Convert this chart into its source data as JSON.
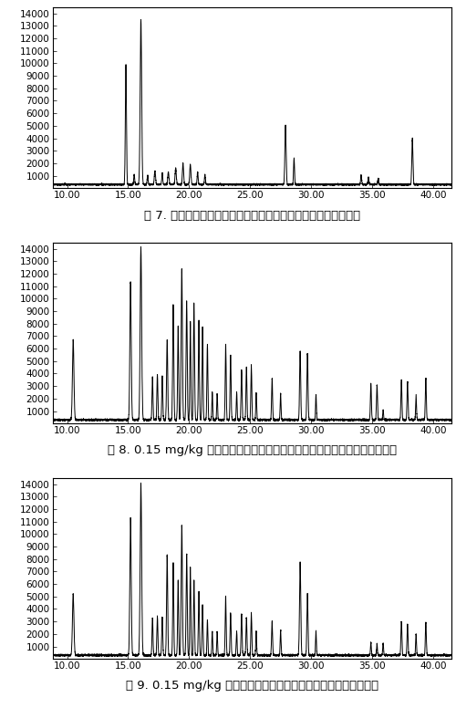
{
  "fig1_caption": "图 7. 大米基质空白的选择离子流色谱图（有机磷农药检测条件）",
  "fig2_caption": "图 8. 0.15 mg/kg 大米基质混合标准工作液选择离子流色谱图（有机磷农药）",
  "fig3_caption": "图 9. 0.15 mg/kg 大米基质加标选择离子流色谱图（有机磷农药）",
  "xlim": [
    8.8,
    41.5
  ],
  "ylim": [
    0,
    14500
  ],
  "xticks": [
    10.0,
    15.0,
    20.0,
    25.0,
    30.0,
    35.0,
    40.0
  ],
  "xtick_labels": [
    "10.00",
    "15.00",
    "20.00",
    "25.00",
    "30.00",
    "35.00",
    "40.00"
  ],
  "yticks": [
    1000,
    2000,
    3000,
    4000,
    5000,
    6000,
    7000,
    8000,
    9000,
    10000,
    11000,
    12000,
    13000,
    14000
  ],
  "page_bg": "#ffffff",
  "plot_bg": "#ffffff",
  "line_color": "#000000",
  "border_color": "#000000",
  "caption_fontsize": 9.5,
  "tick_fontsize": 7.5
}
